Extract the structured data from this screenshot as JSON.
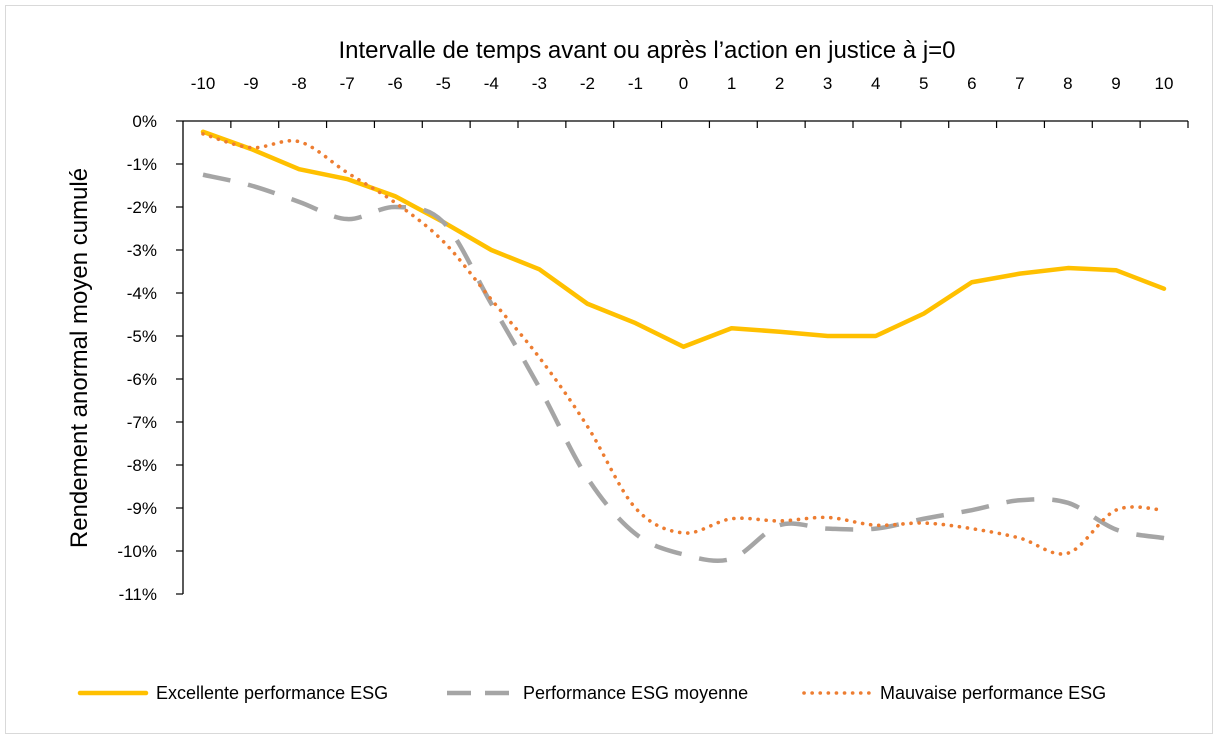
{
  "chart_data": {
    "type": "line",
    "xlabel": "Intervalle de temps avant ou après l’action en justice à j=0",
    "ylabel": "Rendement anormal moyen cumulé",
    "x": [
      -10,
      -9,
      -8,
      -7,
      -6,
      -5,
      -4,
      -3,
      -2,
      -1,
      0,
      1,
      2,
      3,
      4,
      5,
      6,
      7,
      8,
      9,
      10
    ],
    "x_tick_labels": [
      "-10",
      "-9",
      "-8",
      "-7",
      "-6",
      "-5",
      "-4",
      "-3",
      "-2",
      "-1",
      "0",
      "1",
      "2",
      "3",
      "4",
      "5",
      "6",
      "7",
      "8",
      "9",
      "10"
    ],
    "y_tick_labels": [
      "0%",
      "-1%",
      "-2%",
      "-3%",
      "-4%",
      "-5%",
      "-6%",
      "-7%",
      "-8%",
      "-9%",
      "-10%",
      "-11%"
    ],
    "y_ticks": [
      0,
      -1,
      -2,
      -3,
      -4,
      -5,
      -6,
      -7,
      -8,
      -9,
      -10,
      -11
    ],
    "ylim": [
      -11,
      0
    ],
    "x_axis_position": "top",
    "grid": false,
    "legend_position": "bottom",
    "series": [
      {
        "name": "Excellente performance ESG",
        "color": "#FFC000",
        "style": "solid",
        "values": [
          -0.25,
          -0.65,
          -1.12,
          -1.35,
          -1.75,
          -2.35,
          -3.0,
          -3.45,
          -4.25,
          -4.7,
          -5.25,
          -4.82,
          -4.9,
          -5.0,
          -5.0,
          -4.48,
          -3.75,
          -3.55,
          -3.42,
          -3.47,
          -3.9
        ]
      },
      {
        "name": "Performance ESG moyenne",
        "color": "#A5A5A5",
        "style": "dashed",
        "values": [
          -1.25,
          -1.5,
          -1.88,
          -2.28,
          -2.0,
          -2.35,
          -4.25,
          -6.2,
          -8.3,
          -9.6,
          -10.08,
          -10.18,
          -9.4,
          -9.48,
          -9.48,
          -9.25,
          -9.05,
          -8.82,
          -8.88,
          -9.5,
          -9.7
        ]
      },
      {
        "name": "Mauvaise performance ESG",
        "color": "#ED7D31",
        "style": "dotted",
        "values": [
          -0.3,
          -0.62,
          -0.48,
          -1.2,
          -1.9,
          -2.8,
          -4.15,
          -5.5,
          -7.1,
          -9.0,
          -9.58,
          -9.25,
          -9.3,
          -9.22,
          -9.4,
          -9.35,
          -9.48,
          -9.7,
          -10.05,
          -9.05,
          -9.05
        ]
      }
    ]
  }
}
